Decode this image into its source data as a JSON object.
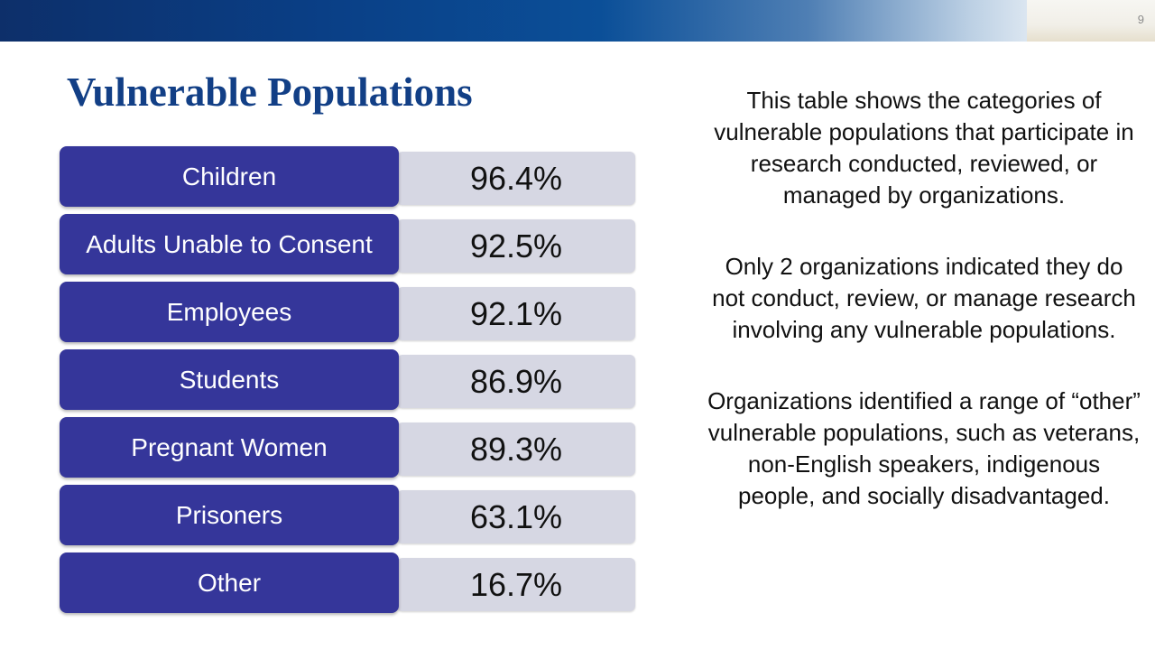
{
  "slide": {
    "page_number": "9",
    "title": "Vulnerable Populations"
  },
  "populations": [
    {
      "label": "Children",
      "value": "96.4%"
    },
    {
      "label": "Adults Unable to Consent",
      "value": "92.5%"
    },
    {
      "label": "Employees",
      "value": "92.1%"
    },
    {
      "label": "Students",
      "value": "86.9%"
    },
    {
      "label": "Pregnant Women",
      "value": "89.3%"
    },
    {
      "label": "Prisoners",
      "value": "63.1%"
    },
    {
      "label": "Other",
      "value": "16.7%"
    }
  ],
  "commentary": [
    "This table shows the categories of vulnerable populations that participate in research conducted, reviewed, or managed by organizations.",
    "Only 2 organizations indicated they do not conduct, review, or manage research involving any vulnerable populations.",
    "Organizations identified a range of “other” vulnerable populations, such as veterans, non-English speakers, indigenous people, and socially disadvantaged."
  ],
  "colors": {
    "title": "#123f86",
    "label_box": "#35369a",
    "value_box": "#d6d7e3",
    "header_dark": "#0d2f6a",
    "header_light": "#f6f6f4"
  }
}
